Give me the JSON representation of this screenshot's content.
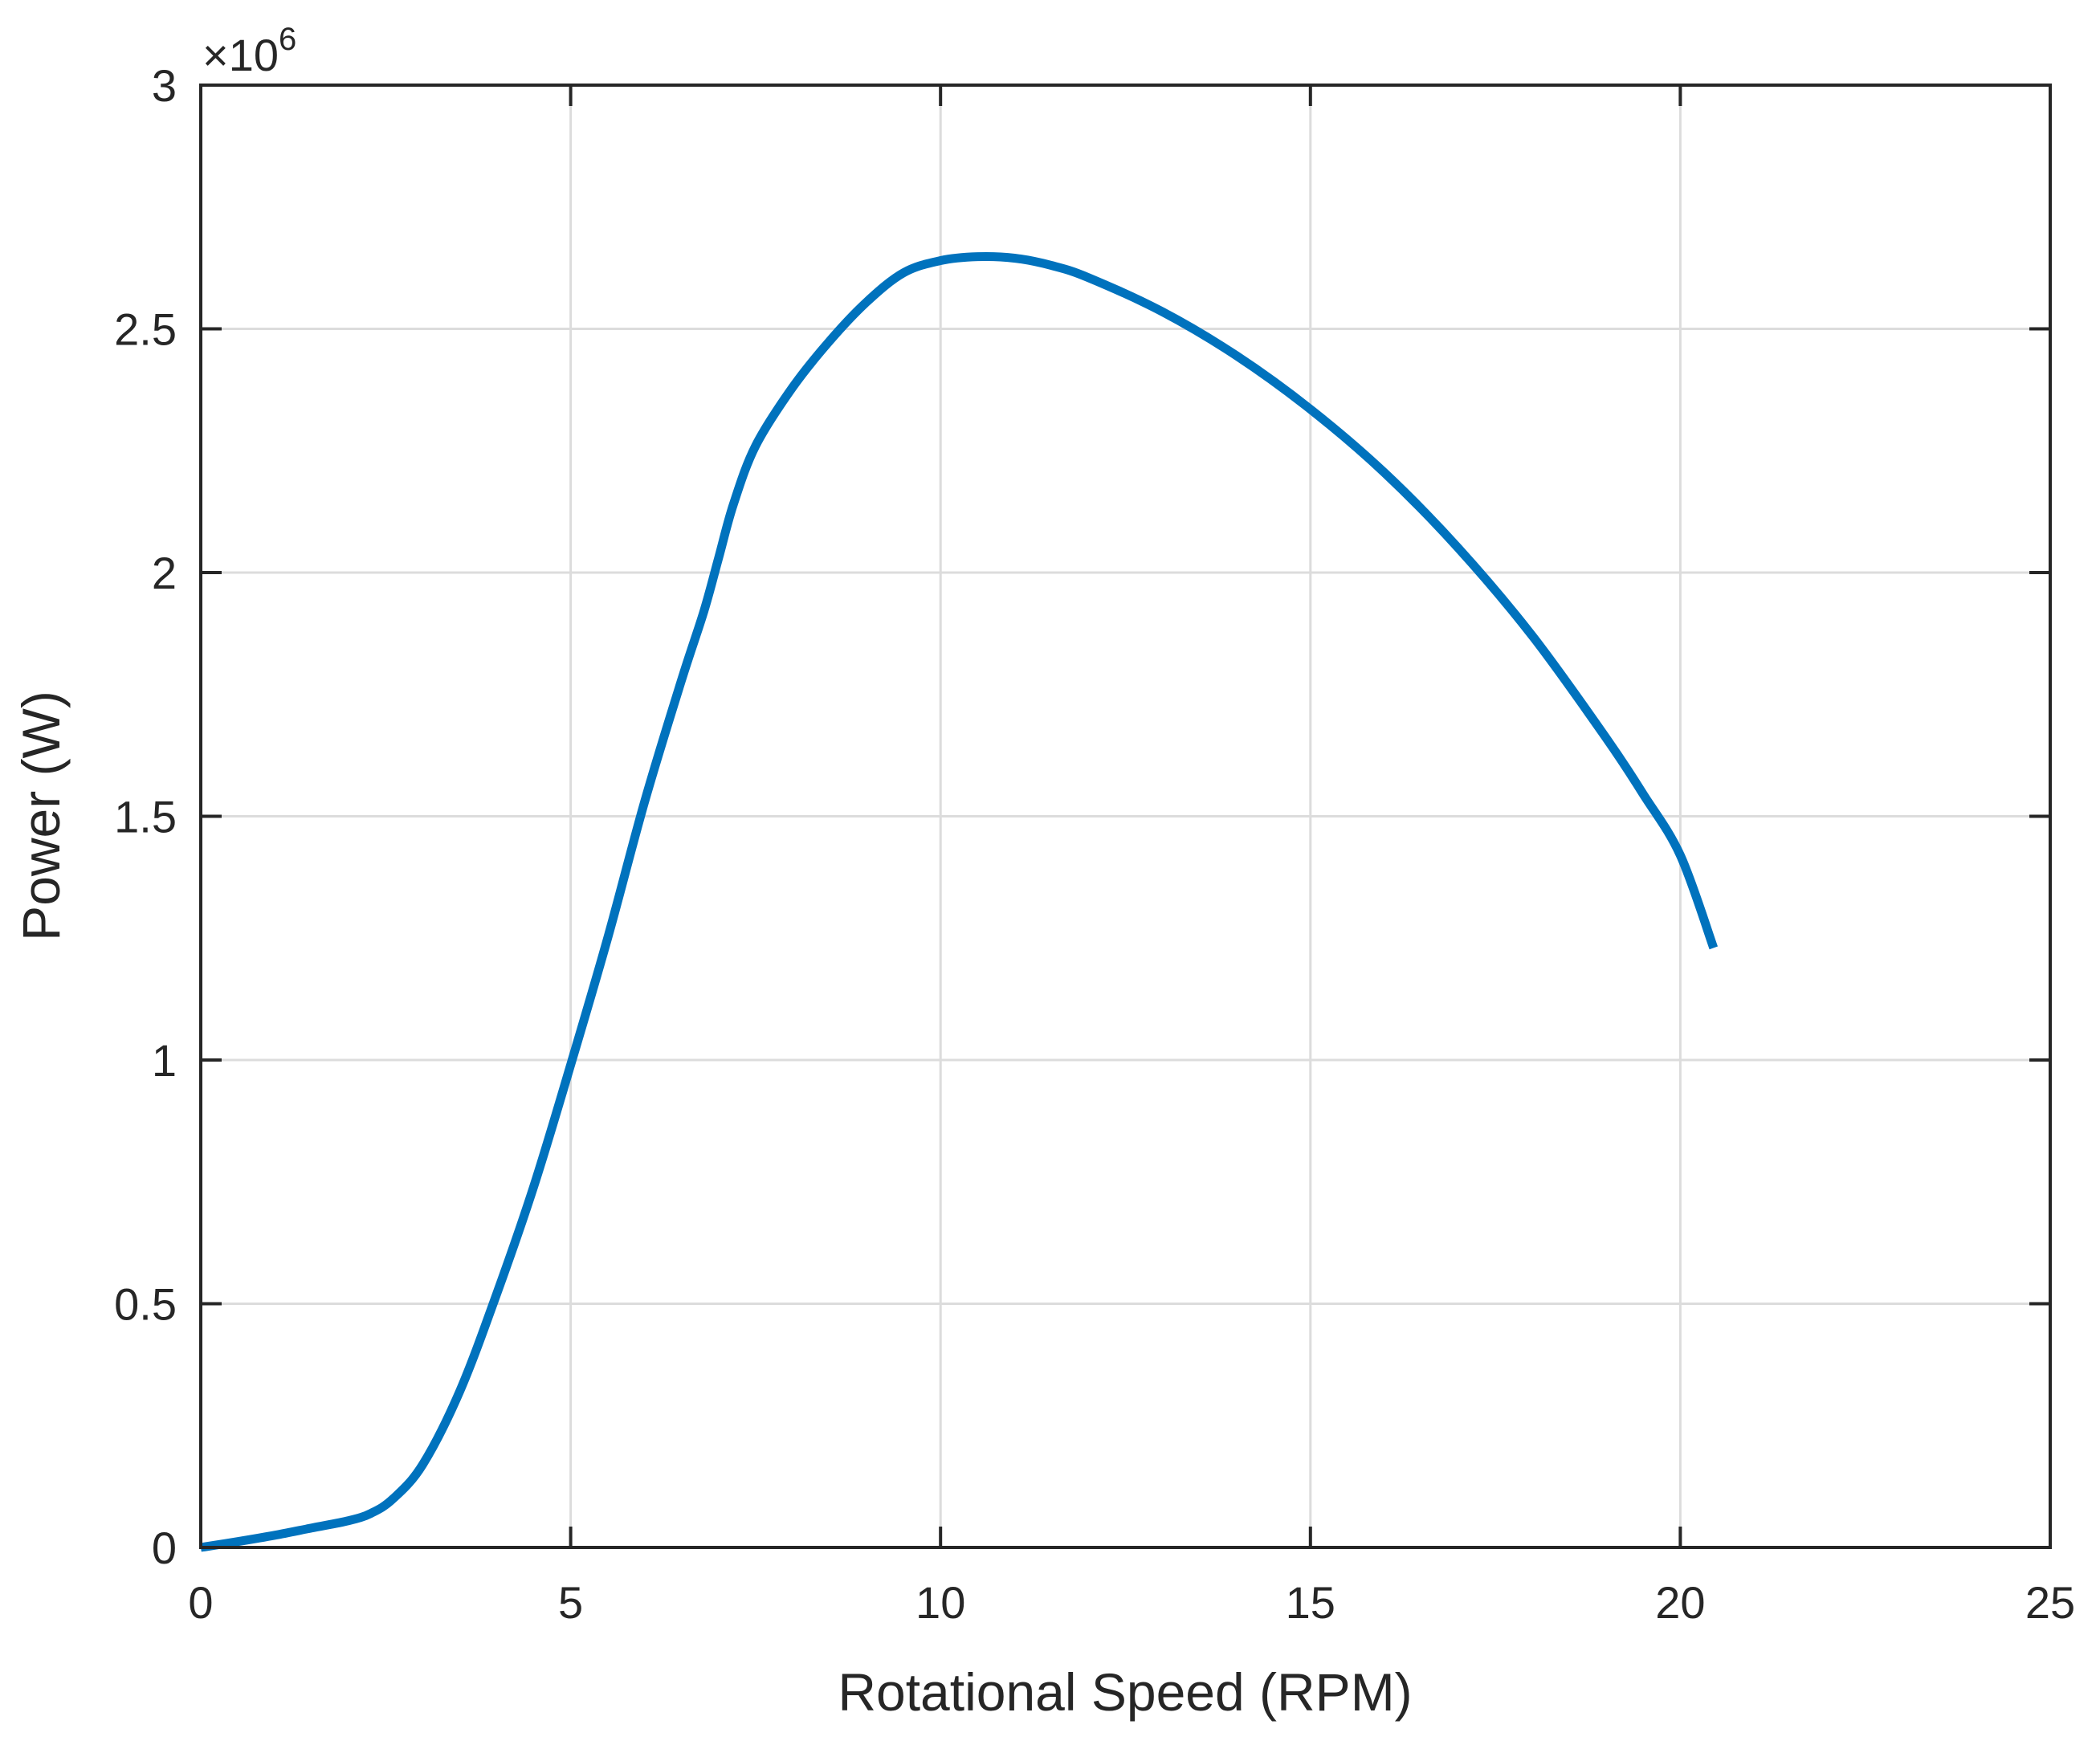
{
  "chart_data": {
    "type": "line",
    "title": "",
    "xlabel": "Rotational Speed (RPM)",
    "ylabel": "Power (W)",
    "xlim": [
      0,
      25
    ],
    "ylim": [
      0,
      3
    ],
    "y_multiplier_label": "×10",
    "y_multiplier_exponent": "6",
    "xticks": [
      0,
      5,
      10,
      15,
      20,
      25
    ],
    "xtick_labels": [
      "0",
      "5",
      "10",
      "15",
      "20",
      "25"
    ],
    "yticks": [
      0,
      0.5,
      1,
      1.5,
      2,
      2.5,
      3
    ],
    "ytick_labels": [
      "0",
      "0.5",
      "1",
      "1.5",
      "2",
      "2.5",
      "3"
    ],
    "grid": true,
    "color": "#0072BD",
    "series": [
      {
        "name": "Power",
        "x": [
          0,
          0.5,
          1.0,
          1.5,
          2.0,
          2.3,
          2.6,
          3.0,
          3.5,
          4.0,
          4.5,
          5.0,
          5.5,
          6.0,
          6.5,
          6.8,
          7.0,
          7.2,
          7.5,
          8.0,
          8.5,
          9.0,
          9.5,
          10.0,
          10.5,
          11.0,
          11.5,
          12.0,
          13.0,
          14.0,
          15.0,
          16.0,
          17.0,
          18.0,
          19.0,
          19.5,
          20.0,
          20.45
        ],
        "y": [
          0,
          0.012,
          0.025,
          0.04,
          0.055,
          0.07,
          0.1,
          0.17,
          0.32,
          0.52,
          0.74,
          0.99,
          1.25,
          1.53,
          1.78,
          1.92,
          2.03,
          2.14,
          2.26,
          2.38,
          2.475,
          2.555,
          2.615,
          2.64,
          2.648,
          2.645,
          2.63,
          2.605,
          2.535,
          2.445,
          2.335,
          2.205,
          2.05,
          1.87,
          1.66,
          1.545,
          1.42,
          1.23
        ]
      }
    ]
  }
}
